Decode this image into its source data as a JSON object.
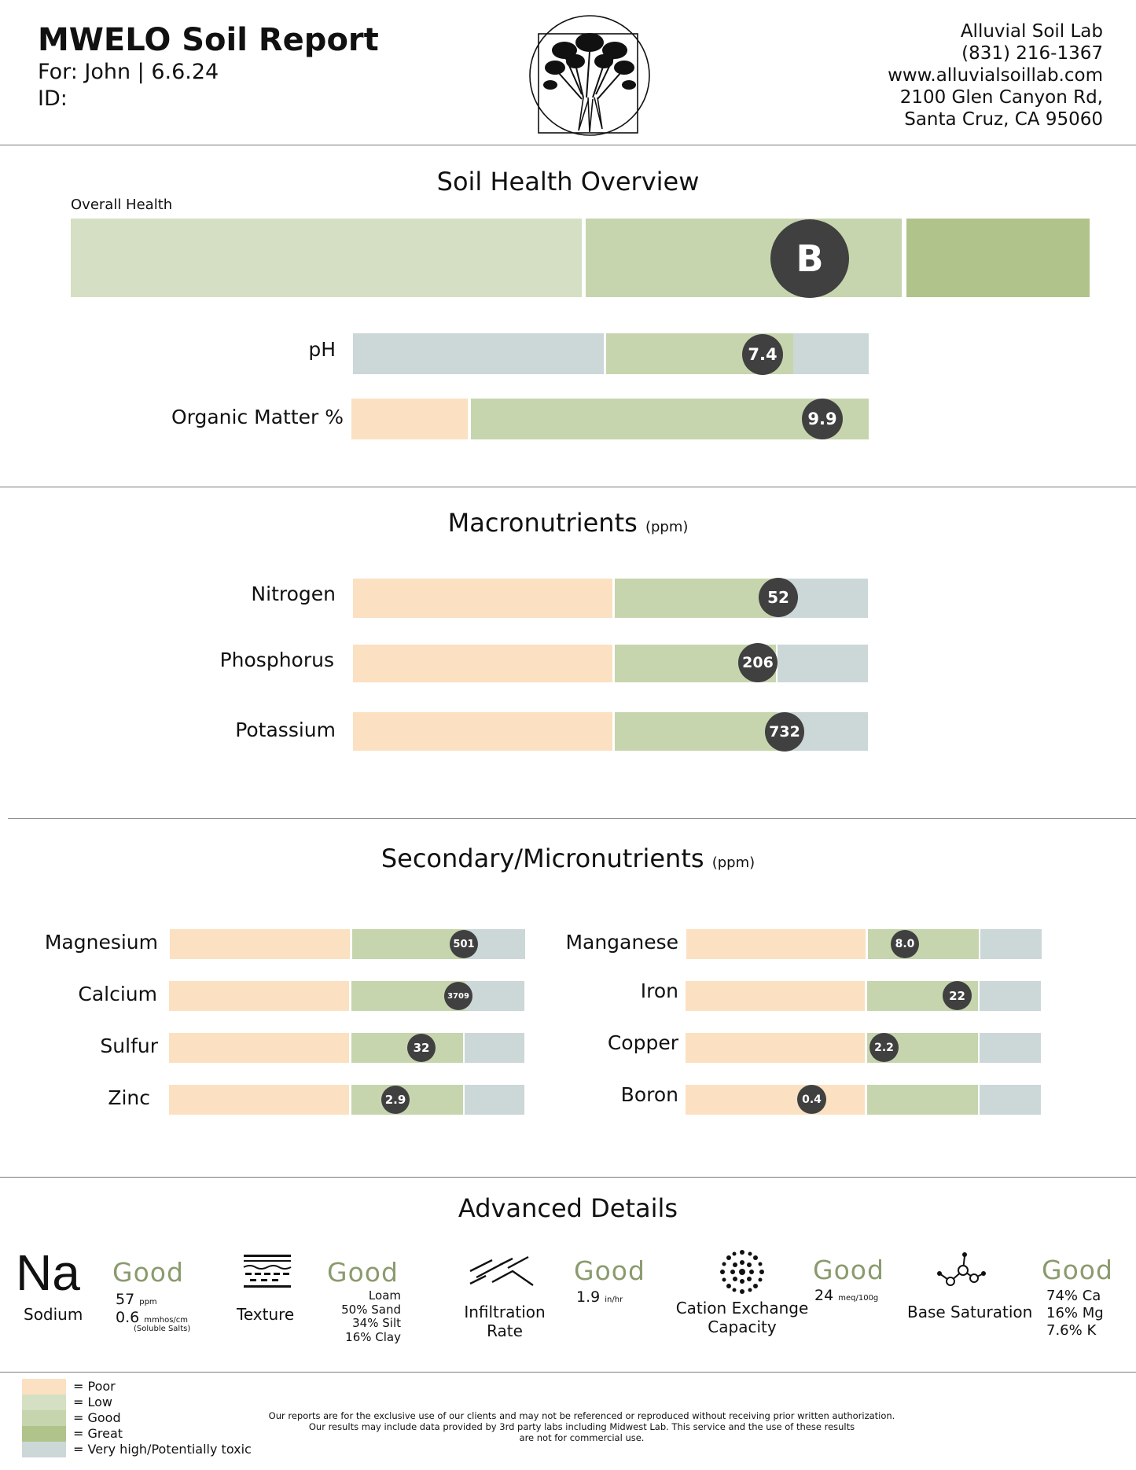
{
  "header": {
    "title": "MWELO Soil Report",
    "for_line": "For: John | 6.6.24",
    "id_line": "ID:",
    "lab_lines": [
      "Alluvial Soil Lab",
      "(831) 216-1367",
      "www.alluvialsoillab.com",
      "2100 Glen Canyon Rd,",
      "Santa Cruz, CA 95060"
    ]
  },
  "overview": {
    "title": "Soil Health Overview",
    "overall_label": "Overall Health",
    "overall_grade": "B",
    "ph_label": "pH",
    "ph_value": "7.4",
    "om_label": "Organic Matter %",
    "om_value": "9.9"
  },
  "macro": {
    "title": "Macronutrients",
    "unit": "(ppm)",
    "rows": [
      {
        "label": "Nitrogen",
        "value": "52"
      },
      {
        "label": "Phosphorus",
        "value": "206"
      },
      {
        "label": "Potassium",
        "value": "732"
      }
    ]
  },
  "micro": {
    "title": "Secondary/Micronutrients",
    "unit": "(ppm)",
    "left": [
      {
        "label": "Magnesium",
        "value": "501"
      },
      {
        "label": "Calcium",
        "value": "3709"
      },
      {
        "label": "Sulfur",
        "value": "32"
      },
      {
        "label": "Zinc",
        "value": "2.9"
      }
    ],
    "right": [
      {
        "label": "Manganese",
        "value": "8.0"
      },
      {
        "label": "Iron",
        "value": "22"
      },
      {
        "label": "Copper",
        "value": "2.2"
      },
      {
        "label": "Boron",
        "value": "0.4"
      }
    ]
  },
  "advanced": {
    "title": "Advanced Details",
    "sodium": {
      "symbol": "Na",
      "label": "Sodium",
      "rating": "Good",
      "ppm_value": "57",
      "ppm_unit": "ppm",
      "ec_value": "0.6",
      "ec_unit": "mmhos/cm",
      "ec_note": "(Soluble Salts)"
    },
    "texture": {
      "label": "Texture",
      "rating": "Good",
      "lines": [
        "Loam",
        "50% Sand",
        "34% Silt",
        "16% Clay"
      ]
    },
    "infiltration": {
      "label_1": "Infiltration",
      "label_2": "Rate",
      "rating": "Good",
      "value": "1.9",
      "unit": "in/hr"
    },
    "cec": {
      "label_1": "Cation Exchange",
      "label_2": "Capacity",
      "rating": "Good",
      "value": "24",
      "unit": "meq/100g"
    },
    "base": {
      "label": "Base Saturation",
      "rating": "Good",
      "lines": [
        "74% Ca",
        "16% Mg",
        "7.6% K"
      ]
    }
  },
  "legend": [
    {
      "text": "=  Poor",
      "color": "#fbe0c2"
    },
    {
      "text": "=  Low",
      "color": "#d5dfc3"
    },
    {
      "text": "=  Good",
      "color": "#c6d5ad"
    },
    {
      "text": "=  Great",
      "color": "#b0c38a"
    },
    {
      "text": "=  Very high/Potentially toxic",
      "color": "#ccd7d8"
    }
  ],
  "disclaimer": [
    "Our reports are for the exclusive use of our clients and may not be referenced or reproduced without receiving prior written authorization.",
    "Our results may include data provided by 3rd party labs including Midwest Lab.  This service and the use of these results",
    "are not for commercial use."
  ]
}
